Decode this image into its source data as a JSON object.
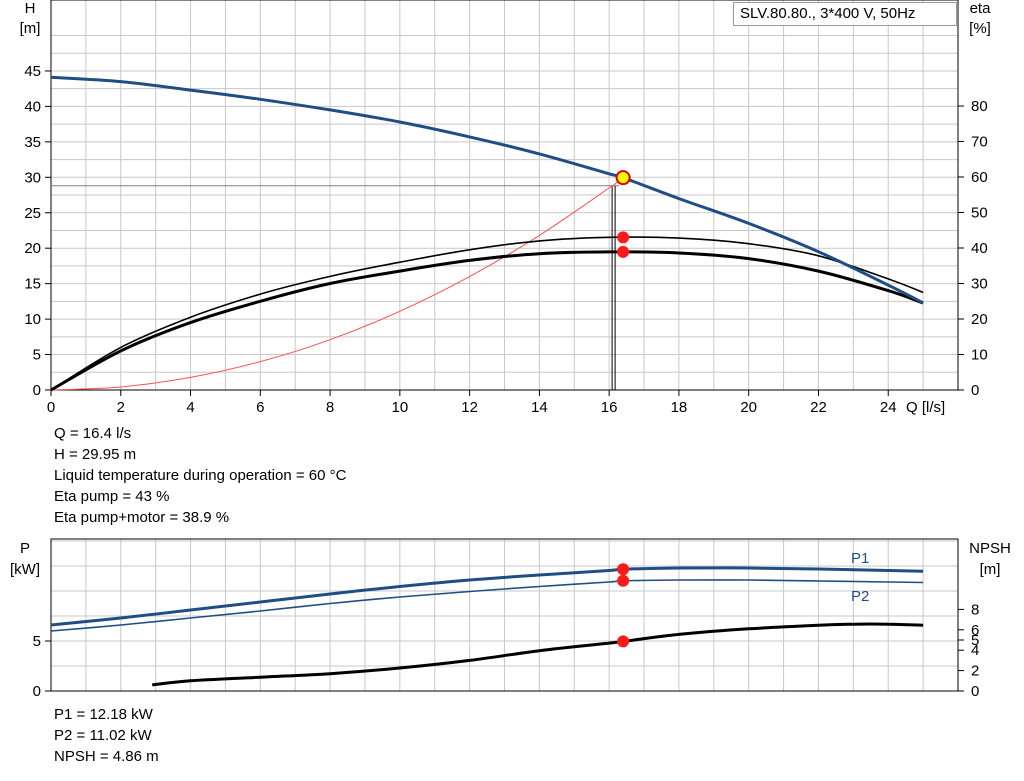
{
  "title": "SLV.80.80., 3*400 V, 50Hz",
  "chart_data": [
    {
      "type": "line",
      "name": "QH",
      "axes": {
        "x": {
          "label": "Q [l/s]",
          "range": [
            0,
            26
          ],
          "ticks": [
            0,
            2,
            4,
            6,
            8,
            10,
            12,
            14,
            16,
            18,
            20,
            22,
            24
          ]
        },
        "y_left": {
          "label_top": "H",
          "label_unit": "[m]",
          "range": [
            0,
            50
          ],
          "ticks": [
            0,
            5,
            10,
            15,
            20,
            25,
            30,
            35,
            40,
            45
          ]
        },
        "y_right": {
          "label_top": "eta",
          "label_unit": "[%]",
          "range": [
            0,
            100
          ],
          "ticks": [
            0,
            10,
            20,
            30,
            40,
            50,
            60,
            70,
            80
          ]
        }
      },
      "grid": true,
      "series": [
        {
          "key": "H",
          "color": "#1f4e85",
          "x": [
            0,
            2,
            4,
            6,
            8,
            10,
            12,
            14,
            16,
            16.4,
            18,
            20,
            22,
            24,
            25
          ],
          "y": [
            44.1,
            43.5,
            42.3,
            41.0,
            39.5,
            37.8,
            35.7,
            33.3,
            30.5,
            29.95,
            27.0,
            23.5,
            19.5,
            14.8,
            12.3
          ]
        },
        {
          "key": "eta_pump",
          "axis": "right",
          "color": "#000000",
          "x": [
            0,
            2,
            4,
            6,
            8,
            10,
            12,
            14,
            16,
            18,
            20,
            22,
            24,
            25
          ],
          "y": [
            0,
            12,
            20.5,
            27,
            32,
            36,
            39.5,
            42,
            43,
            42.8,
            41.2,
            37.8,
            31.3,
            27.5
          ]
        },
        {
          "key": "eta_total",
          "axis": "right",
          "color": "#000000",
          "x": [
            0,
            2,
            4,
            6,
            8,
            10,
            12,
            14,
            16,
            18,
            20,
            22,
            24,
            25
          ],
          "y": [
            0,
            11,
            19,
            25,
            30,
            33.5,
            36.5,
            38.4,
            38.9,
            38.6,
            37,
            33.5,
            28,
            24.5
          ]
        },
        {
          "key": "system_curve",
          "color": "#ff5050",
          "x": [
            0,
            2,
            4,
            6,
            8,
            10,
            12,
            14,
            16,
            16.4
          ],
          "y": [
            0,
            0.43,
            1.78,
            4.0,
            7.1,
            11.1,
            16.0,
            21.8,
            28.5,
            29.95
          ]
        }
      ],
      "operating_point": {
        "Q": 16.4,
        "H": 29.95,
        "eta_pump": 43,
        "eta_total": 38.9,
        "H_line": 28.8
      }
    },
    {
      "type": "line",
      "name": "Power and NPSH",
      "axes": {
        "y_left": {
          "label_top": "P",
          "label_unit": "[kW]",
          "range": [
            0,
            15
          ],
          "ticks": [
            0,
            5
          ]
        },
        "y_right": {
          "label_top": "NPSH",
          "label_unit": "[m]",
          "range": [
            0,
            18
          ],
          "ticks": [
            0,
            2,
            4,
            5,
            6,
            8
          ]
        }
      },
      "series": [
        {
          "key": "P1",
          "label": "P1",
          "color": "#1f4e85",
          "x": [
            0,
            2,
            4,
            6,
            8,
            10,
            12,
            14,
            16,
            16.4,
            18,
            20,
            22,
            24,
            25
          ],
          "y": [
            6.6,
            7.3,
            8.1,
            8.9,
            9.7,
            10.45,
            11.1,
            11.6,
            12.05,
            12.18,
            12.3,
            12.3,
            12.2,
            12.05,
            11.98
          ]
        },
        {
          "key": "P2",
          "label": "P2",
          "color": "#1f4e85",
          "x": [
            0,
            2,
            4,
            6,
            8,
            10,
            12,
            14,
            16,
            16.4,
            18,
            20,
            22,
            24,
            25
          ],
          "y": [
            6.0,
            6.6,
            7.3,
            8.0,
            8.75,
            9.4,
            9.95,
            10.45,
            10.9,
            11.02,
            11.1,
            11.1,
            11.0,
            10.9,
            10.85
          ]
        },
        {
          "key": "NPSH",
          "color": "#000000",
          "axis": "right",
          "x": [
            2.9,
            4,
            6,
            8,
            10,
            12,
            14,
            16,
            16.4,
            18,
            20,
            22,
            23,
            24,
            25
          ],
          "y": [
            0.6,
            1.0,
            1.35,
            1.7,
            2.25,
            3.0,
            3.95,
            4.7,
            4.86,
            5.55,
            6.1,
            6.45,
            6.55,
            6.55,
            6.45
          ]
        }
      ],
      "operating_point": {
        "Q": 16.4,
        "P1": 12.18,
        "P2": 11.02,
        "NPSH": 4.86
      }
    }
  ],
  "info_top": [
    "Q = 16.4 l/s",
    "H = 29.95 m",
    "Liquid temperature during operation = 60 °C",
    "Eta pump = 43 %",
    "Eta pump+motor = 38.9 %"
  ],
  "info_bottom": [
    "P1 = 12.18 kW",
    "P2 = 11.02 kW",
    "NPSH = 4.86 m"
  ]
}
